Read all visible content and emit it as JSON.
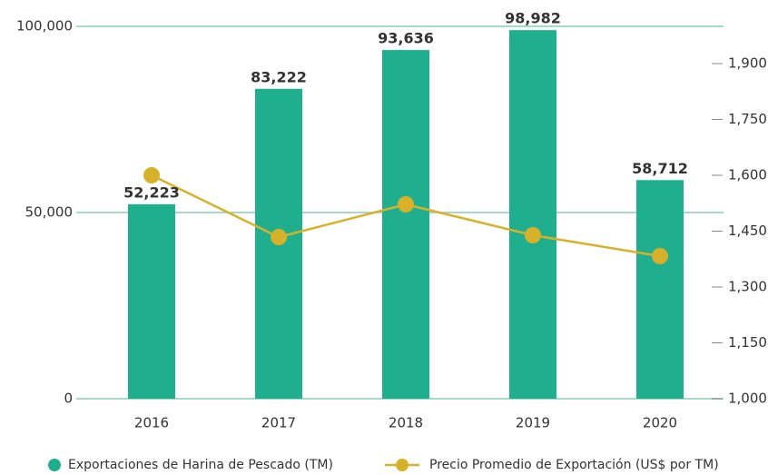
{
  "chart_data": {
    "type": "bar_line",
    "categories": [
      "2016",
      "2017",
      "2018",
      "2019",
      "2020"
    ],
    "series": [
      {
        "name": "Exportaciones de Harina de Pescado (TM)",
        "type": "bar",
        "color": "#1fae8e",
        "values": [
          52223,
          83222,
          93636,
          98982,
          58712
        ],
        "value_labels": [
          "52,223",
          "83,222",
          "93,636",
          "98,982",
          "58,712"
        ]
      },
      {
        "name": "Precio Promedio de Exportación (US$ por TM)",
        "type": "line",
        "axis": "y2",
        "color": "#d8b12a",
        "values": [
          1600,
          1434,
          1522,
          1439,
          1383
        ]
      }
    ],
    "ylim": [
      0,
      100000
    ],
    "yticks": [
      {
        "value": 0,
        "label": "0"
      },
      {
        "value": 50000,
        "label": "50,000"
      },
      {
        "value": 100000,
        "label": "100,000"
      }
    ],
    "y2lim": [
      1000,
      2000
    ],
    "y2ticks": [
      {
        "value": 1000,
        "label": "1,000"
      },
      {
        "value": 1150,
        "label": "1,150"
      },
      {
        "value": 1300,
        "label": "1,300"
      },
      {
        "value": 1450,
        "label": "1,450"
      },
      {
        "value": 1600,
        "label": "1,600"
      },
      {
        "value": 1750,
        "label": "1,750"
      },
      {
        "value": 1900,
        "label": "1,900"
      }
    ],
    "grid": true,
    "legend": "bottom"
  }
}
